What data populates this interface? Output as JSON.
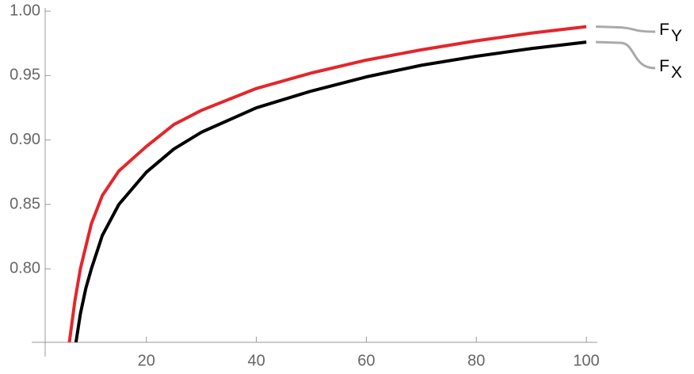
{
  "chart_data": {
    "type": "line",
    "xlim": [
      1.6,
      102
    ],
    "ylim": [
      0.743,
      1.0025
    ],
    "xticks": [
      20,
      40,
      60,
      80,
      100
    ],
    "yticks": [
      {
        "value": 0.8,
        "label": "0.80"
      },
      {
        "value": 0.85,
        "label": "0.85"
      },
      {
        "value": 0.9,
        "label": "0.90"
      },
      {
        "value": 0.95,
        "label": "0.95"
      },
      {
        "value": 1.0,
        "label": "1.00"
      }
    ],
    "series": [
      {
        "name": "F",
        "subscript": "Y",
        "color": "#e3262b",
        "x": [
          6.0,
          7,
          8,
          10,
          12,
          15,
          20,
          25,
          30,
          40,
          50,
          60,
          70,
          80,
          90,
          100
        ],
        "values": [
          0.743,
          0.775,
          0.8,
          0.835,
          0.857,
          0.876,
          0.895,
          0.912,
          0.923,
          0.94,
          0.952,
          0.962,
          0.97,
          0.977,
          0.983,
          0.988
        ]
      },
      {
        "name": "F",
        "subscript": "X",
        "color": "#000000",
        "x": [
          7.2,
          8,
          9,
          10,
          12,
          15,
          20,
          25,
          30,
          40,
          50,
          60,
          70,
          80,
          90,
          100
        ],
        "values": [
          0.743,
          0.765,
          0.785,
          0.8,
          0.826,
          0.85,
          0.875,
          0.893,
          0.906,
          0.925,
          0.938,
          0.949,
          0.958,
          0.965,
          0.971,
          0.976
        ]
      }
    ]
  }
}
